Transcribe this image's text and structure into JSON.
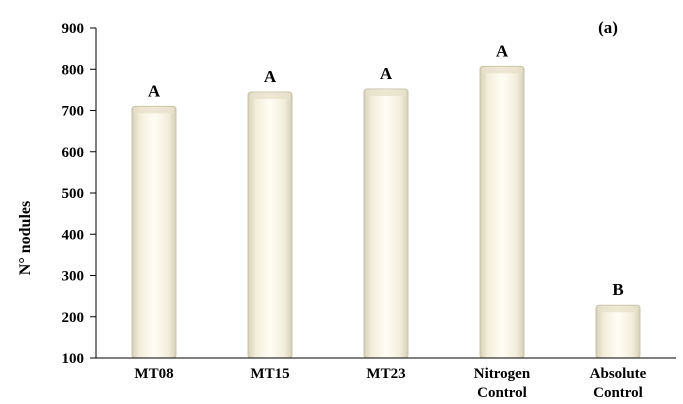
{
  "chart_data": {
    "type": "bar",
    "panel_label": "(a)",
    "ylabel": "N° nodules",
    "xlabel": "",
    "ylim": [
      100,
      900
    ],
    "yticks": [
      100,
      200,
      300,
      400,
      500,
      600,
      700,
      800,
      900
    ],
    "grid": false,
    "categories": [
      [
        "MT08"
      ],
      [
        "MT15"
      ],
      [
        "MT23"
      ],
      [
        "Nitrogen",
        "Control"
      ],
      [
        "Absolute",
        "Control"
      ]
    ],
    "values": [
      710,
      745,
      752,
      807,
      228
    ],
    "significance_letters": [
      "A",
      "A",
      "A",
      "A",
      "B"
    ],
    "colors": {
      "bar_fill": "#fbf6e6",
      "bar_edge": "#c9c2a8",
      "axis": "#000000"
    }
  }
}
